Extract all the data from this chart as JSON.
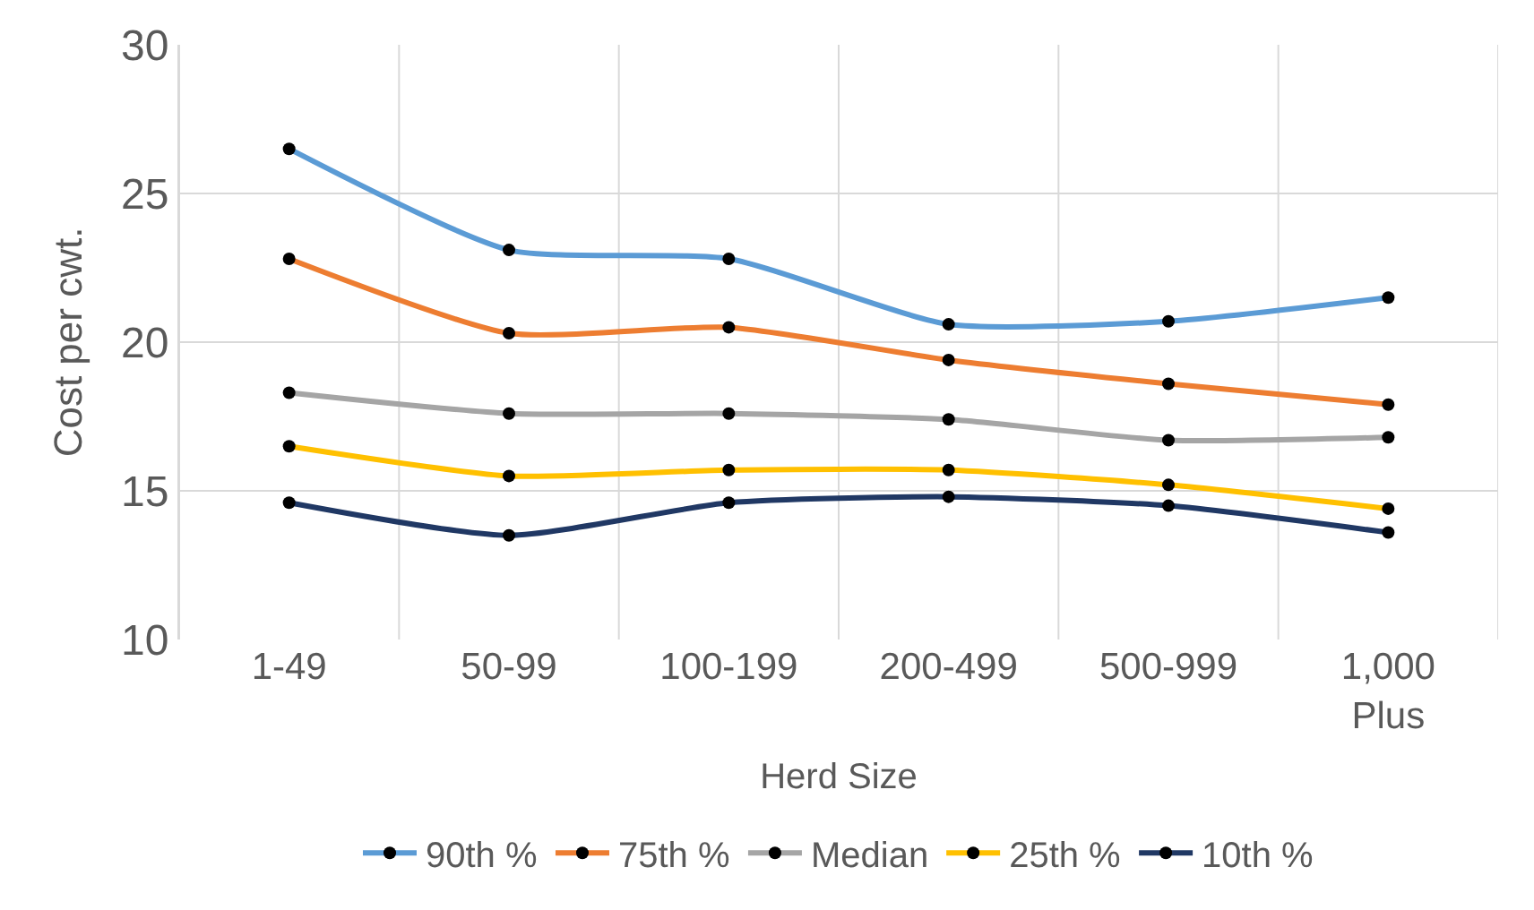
{
  "chart_data": {
    "type": "line",
    "xlabel": "Herd Size",
    "ylabel": "Cost per cwt.",
    "categories": [
      "1-49",
      "50-99",
      "100-199",
      "200-499",
      "500-999",
      "1,000 Plus"
    ],
    "series": [
      {
        "name": "90th %",
        "color": "#5b9bd5",
        "values": [
          26.5,
          23.1,
          22.8,
          20.6,
          20.7,
          21.5
        ]
      },
      {
        "name": "75th %",
        "color": "#ed7d31",
        "values": [
          22.8,
          20.3,
          20.5,
          19.4,
          18.6,
          17.9
        ]
      },
      {
        "name": "Median",
        "color": "#a5a5a5",
        "values": [
          18.3,
          17.6,
          17.6,
          17.4,
          16.7,
          16.8
        ]
      },
      {
        "name": "25th %",
        "color": "#ffc000",
        "values": [
          16.5,
          15.5,
          15.7,
          15.7,
          15.2,
          14.4
        ]
      },
      {
        "name": "10th %",
        "color": "#203864",
        "values": [
          14.6,
          13.5,
          14.6,
          14.8,
          14.5,
          13.6
        ]
      }
    ],
    "ylim": [
      10,
      30
    ],
    "yticks": [
      10,
      15,
      20,
      25,
      30
    ],
    "grid": true,
    "legend": "bottom",
    "marker": "circle",
    "line_style": "solid"
  }
}
